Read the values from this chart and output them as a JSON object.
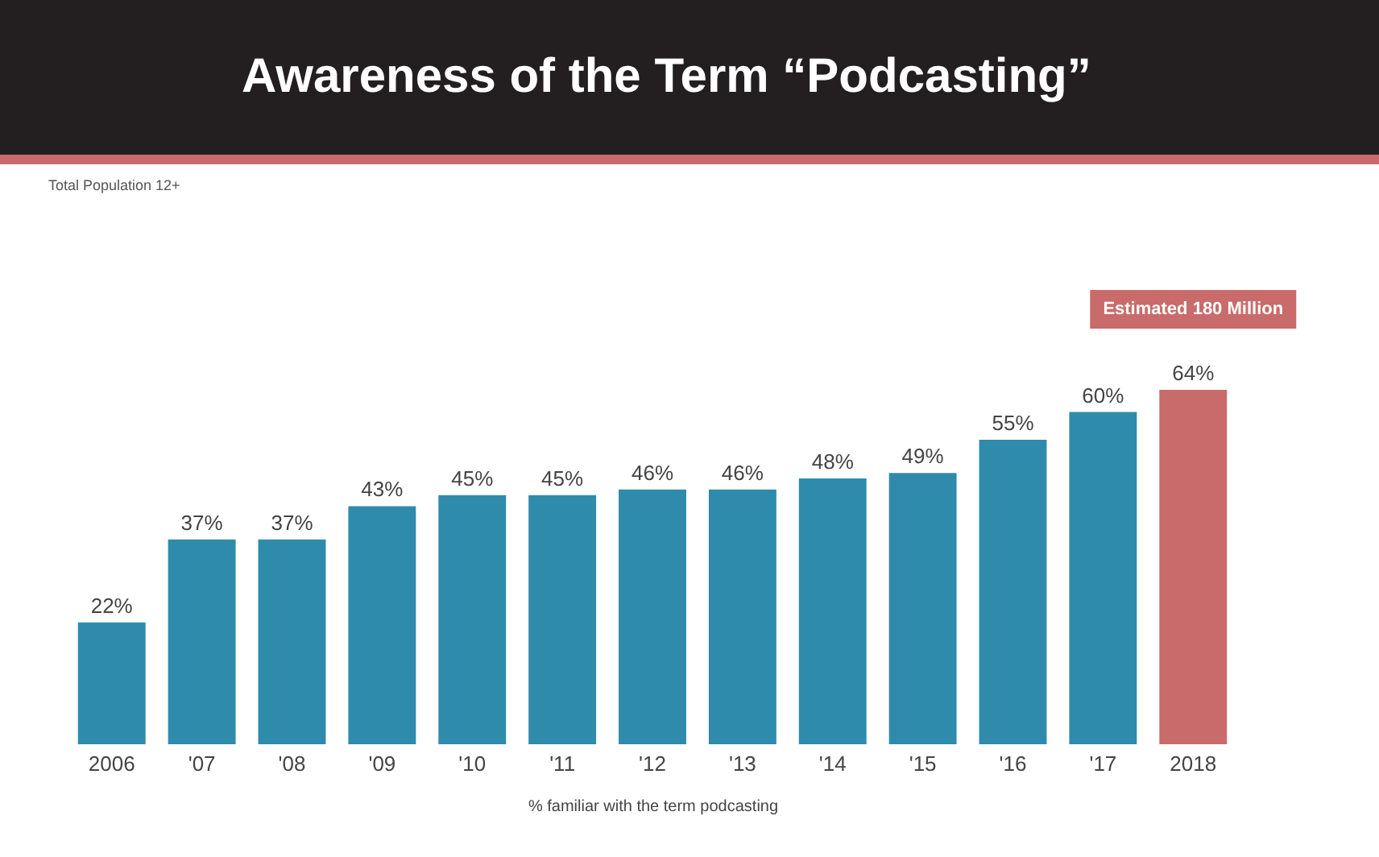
{
  "chart_data": {
    "type": "bar",
    "title": "Awareness of the Term “Podcasting”",
    "subtitle": "Total Population 12+",
    "xlabel": "% familiar with the term podcasting",
    "categories": [
      "2006",
      "'07",
      "'08",
      "'09",
      "'10",
      "'11",
      "'12",
      "'13",
      "'14",
      "'15",
      "'16",
      "'17",
      "2018"
    ],
    "values": [
      22,
      37,
      37,
      43,
      45,
      45,
      46,
      46,
      48,
      49,
      55,
      60,
      64
    ],
    "value_labels": [
      "22%",
      "37%",
      "37%",
      "43%",
      "45%",
      "45%",
      "46%",
      "46%",
      "48%",
      "49%",
      "55%",
      "60%",
      "64%"
    ],
    "colors": [
      "#2f8bab",
      "#2f8bab",
      "#2f8bab",
      "#2f8bab",
      "#2f8bab",
      "#2f8bab",
      "#2f8bab",
      "#2f8bab",
      "#2f8bab",
      "#2f8bab",
      "#2f8bab",
      "#2f8bab",
      "#c96b6b"
    ],
    "annotations": [
      "Estimated 180 Million"
    ],
    "grid": false
  }
}
